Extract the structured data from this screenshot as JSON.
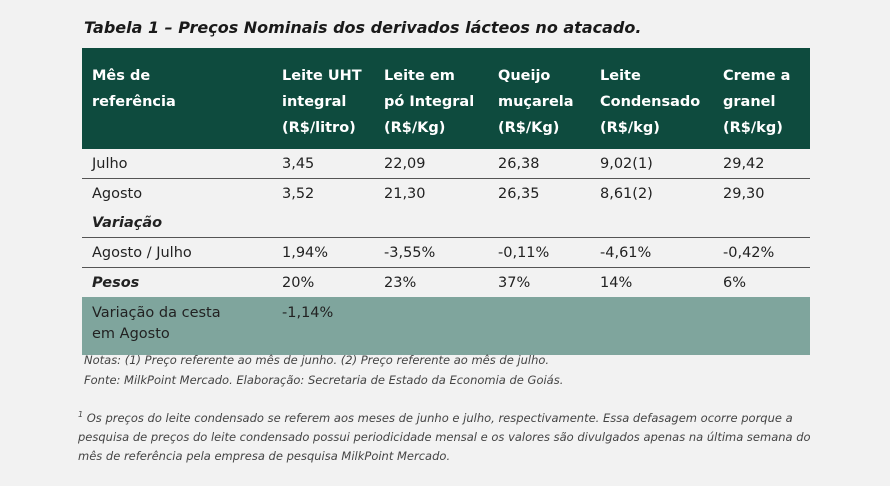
{
  "header": {
    "title": "Tabela 1 – Preços Nominais dos derivados lácteos no atacado."
  },
  "table": {
    "columns": [
      "Mês de referência",
      "Leite UHT integral (R$/litro)",
      "Leite em pó Integral (R$/Kg)",
      "Queijo muçarela (R$/Kg)",
      "Leite Condensado (R$/kg)",
      "Creme a granel (R$/kg)"
    ],
    "rows": [
      [
        "Julho",
        "3,45",
        "22,09",
        "26,38",
        "9,02(1)",
        "29,42"
      ],
      [
        "Agosto",
        "3,52",
        "21,30",
        "26,35",
        "8,61(2)",
        "29,30"
      ],
      [
        "Variação"
      ],
      [
        "Agosto / Julho",
        "1,94%",
        "-3,55%",
        "-0,11%",
        "-4,61%",
        "-0,42%"
      ],
      [
        "Pesos",
        "20%",
        "23%",
        "37%",
        "14%",
        "6%"
      ],
      [
        "Variação da cesta em Agosto",
        "-1,14%"
      ]
    ]
  },
  "notes": [
    "Notas: (1) Preço referente ao mês de junho. (2) Preço referente ao mês de julho.",
    "Fonte: MilkPoint Mercado. Elaboração: Secretaria de Estado da Economia de Goiás."
  ],
  "footnote": {
    "mark": "1",
    "text": "Os preços do leite condensado se referem aos meses de junho e julho, respectivamente. Essa defasagem ocorre porque a pesquisa de preços do leite condensado possui periodicidade mensal e os valores são divulgados apenas na última semana do mês de referência pela empresa de pesquisa MilkPoint Mercado."
  }
}
